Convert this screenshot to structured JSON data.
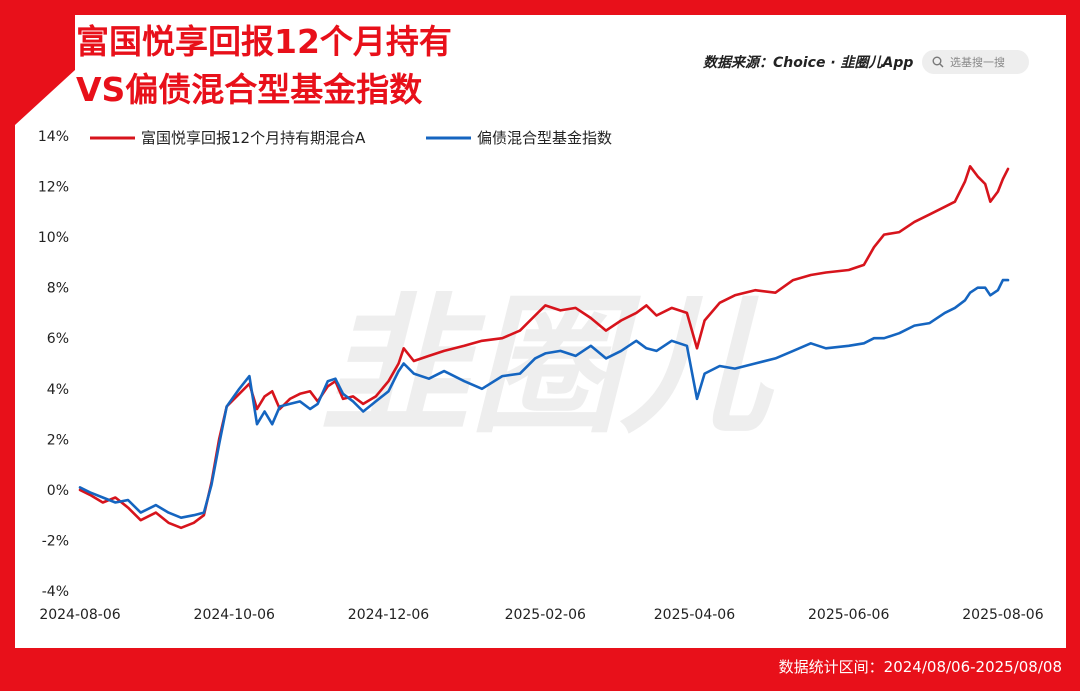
{
  "header": {
    "title_line1": "富国悦享回报12个月持有",
    "title_line2": "VS偏债混合型基金指数",
    "source": "数据来源：Choice · 韭圈儿App",
    "search_placeholder": "选基搜一搜",
    "watermark": "韭圈儿"
  },
  "footer": {
    "period": "数据统计区间：2024/08/06-2025/08/08"
  },
  "colors": {
    "brand_red": "#e8101a",
    "series_red": "#d7141c",
    "series_blue": "#1565c0"
  },
  "chart_data": {
    "type": "line",
    "title": "富国悦享回报12个月持有VS偏债混合型基金指数",
    "xlabel": "",
    "ylabel": "",
    "x_ticks": [
      "2024-08-06",
      "2024-10-06",
      "2024-12-06",
      "2025-02-06",
      "2025-04-06",
      "2025-06-06",
      "2025-08-06"
    ],
    "y_ticks": [
      "14%",
      "12%",
      "10%",
      "8%",
      "6%",
      "4%",
      "2%",
      "0%",
      "-2%",
      "-4%"
    ],
    "ylim": [
      -4,
      14
    ],
    "xlim": [
      "2024-08-06",
      "2025-08-08"
    ],
    "y_unit": "%",
    "legend_position": "top-left",
    "grid": false,
    "series": [
      {
        "name": "富国悦享回报12个月持有期混合A",
        "color": "#d7141c",
        "points": [
          [
            "2024-08-06",
            0.0
          ],
          [
            "2024-08-10",
            -0.2
          ],
          [
            "2024-08-15",
            -0.5
          ],
          [
            "2024-08-20",
            -0.3
          ],
          [
            "2024-08-25",
            -0.7
          ],
          [
            "2024-08-30",
            -1.2
          ],
          [
            "2024-09-05",
            -0.9
          ],
          [
            "2024-09-10",
            -1.3
          ],
          [
            "2024-09-15",
            -1.5
          ],
          [
            "2024-09-20",
            -1.3
          ],
          [
            "2024-09-24",
            -1.0
          ],
          [
            "2024-09-27",
            0.3
          ],
          [
            "2024-09-30",
            2.0
          ],
          [
            "2024-10-03",
            3.3
          ],
          [
            "2024-10-08",
            3.8
          ],
          [
            "2024-10-12",
            4.2
          ],
          [
            "2024-10-15",
            3.2
          ],
          [
            "2024-10-18",
            3.7
          ],
          [
            "2024-10-21",
            3.9
          ],
          [
            "2024-10-24",
            3.2
          ],
          [
            "2024-10-28",
            3.6
          ],
          [
            "2024-11-01",
            3.8
          ],
          [
            "2024-11-05",
            3.9
          ],
          [
            "2024-11-08",
            3.5
          ],
          [
            "2024-11-12",
            4.1
          ],
          [
            "2024-11-15",
            4.3
          ],
          [
            "2024-11-18",
            3.6
          ],
          [
            "2024-11-22",
            3.7
          ],
          [
            "2024-11-26",
            3.4
          ],
          [
            "2024-12-01",
            3.7
          ],
          [
            "2024-12-06",
            4.3
          ],
          [
            "2024-12-10",
            5.0
          ],
          [
            "2024-12-12",
            5.6
          ],
          [
            "2024-12-16",
            5.1
          ],
          [
            "2024-12-22",
            5.3
          ],
          [
            "2024-12-28",
            5.5
          ],
          [
            "2025-01-05",
            5.7
          ],
          [
            "2025-01-12",
            5.9
          ],
          [
            "2025-01-20",
            6.0
          ],
          [
            "2025-01-27",
            6.3
          ],
          [
            "2025-02-02",
            6.9
          ],
          [
            "2025-02-06",
            7.3
          ],
          [
            "2025-02-12",
            7.1
          ],
          [
            "2025-02-18",
            7.2
          ],
          [
            "2025-02-24",
            6.8
          ],
          [
            "2025-03-02",
            6.3
          ],
          [
            "2025-03-08",
            6.7
          ],
          [
            "2025-03-14",
            7.0
          ],
          [
            "2025-03-18",
            7.3
          ],
          [
            "2025-03-22",
            6.9
          ],
          [
            "2025-03-28",
            7.2
          ],
          [
            "2025-04-03",
            7.0
          ],
          [
            "2025-04-07",
            5.6
          ],
          [
            "2025-04-10",
            6.7
          ],
          [
            "2025-04-16",
            7.4
          ],
          [
            "2025-04-22",
            7.7
          ],
          [
            "2025-04-30",
            7.9
          ],
          [
            "2025-05-08",
            7.8
          ],
          [
            "2025-05-15",
            8.3
          ],
          [
            "2025-05-22",
            8.5
          ],
          [
            "2025-05-28",
            8.6
          ],
          [
            "2025-06-06",
            8.7
          ],
          [
            "2025-06-12",
            8.9
          ],
          [
            "2025-06-16",
            9.6
          ],
          [
            "2025-06-20",
            10.1
          ],
          [
            "2025-06-26",
            10.2
          ],
          [
            "2025-07-02",
            10.6
          ],
          [
            "2025-07-08",
            10.9
          ],
          [
            "2025-07-14",
            11.2
          ],
          [
            "2025-07-18",
            11.4
          ],
          [
            "2025-07-22",
            12.2
          ],
          [
            "2025-07-24",
            12.8
          ],
          [
            "2025-07-27",
            12.4
          ],
          [
            "2025-07-30",
            12.1
          ],
          [
            "2025-08-01",
            11.4
          ],
          [
            "2025-08-04",
            11.8
          ],
          [
            "2025-08-06",
            12.3
          ],
          [
            "2025-08-08",
            12.7
          ]
        ]
      },
      {
        "name": "偏债混合型基金指数",
        "color": "#1565c0",
        "points": [
          [
            "2024-08-06",
            0.1
          ],
          [
            "2024-08-10",
            -0.1
          ],
          [
            "2024-08-15",
            -0.3
          ],
          [
            "2024-08-20",
            -0.5
          ],
          [
            "2024-08-25",
            -0.4
          ],
          [
            "2024-08-30",
            -0.9
          ],
          [
            "2024-09-05",
            -0.6
          ],
          [
            "2024-09-10",
            -0.9
          ],
          [
            "2024-09-15",
            -1.1
          ],
          [
            "2024-09-20",
            -1.0
          ],
          [
            "2024-09-24",
            -0.9
          ],
          [
            "2024-09-27",
            0.2
          ],
          [
            "2024-09-30",
            1.8
          ],
          [
            "2024-10-03",
            3.3
          ],
          [
            "2024-10-08",
            4.0
          ],
          [
            "2024-10-12",
            4.5
          ],
          [
            "2024-10-15",
            2.6
          ],
          [
            "2024-10-18",
            3.1
          ],
          [
            "2024-10-21",
            2.6
          ],
          [
            "2024-10-24",
            3.3
          ],
          [
            "2024-10-28",
            3.4
          ],
          [
            "2024-11-01",
            3.5
          ],
          [
            "2024-11-05",
            3.2
          ],
          [
            "2024-11-08",
            3.4
          ],
          [
            "2024-11-12",
            4.3
          ],
          [
            "2024-11-15",
            4.4
          ],
          [
            "2024-11-18",
            3.8
          ],
          [
            "2024-11-22",
            3.5
          ],
          [
            "2024-11-26",
            3.1
          ],
          [
            "2024-12-01",
            3.5
          ],
          [
            "2024-12-06",
            3.9
          ],
          [
            "2024-12-10",
            4.7
          ],
          [
            "2024-12-12",
            5.0
          ],
          [
            "2024-12-16",
            4.6
          ],
          [
            "2024-12-22",
            4.4
          ],
          [
            "2024-12-28",
            4.7
          ],
          [
            "2025-01-05",
            4.3
          ],
          [
            "2025-01-12",
            4.0
          ],
          [
            "2025-01-20",
            4.5
          ],
          [
            "2025-01-27",
            4.6
          ],
          [
            "2025-02-02",
            5.2
          ],
          [
            "2025-02-06",
            5.4
          ],
          [
            "2025-02-12",
            5.5
          ],
          [
            "2025-02-18",
            5.3
          ],
          [
            "2025-02-24",
            5.7
          ],
          [
            "2025-03-02",
            5.2
          ],
          [
            "2025-03-08",
            5.5
          ],
          [
            "2025-03-14",
            5.9
          ],
          [
            "2025-03-18",
            5.6
          ],
          [
            "2025-03-22",
            5.5
          ],
          [
            "2025-03-28",
            5.9
          ],
          [
            "2025-04-03",
            5.7
          ],
          [
            "2025-04-07",
            3.6
          ],
          [
            "2025-04-10",
            4.6
          ],
          [
            "2025-04-16",
            4.9
          ],
          [
            "2025-04-22",
            4.8
          ],
          [
            "2025-04-30",
            5.0
          ],
          [
            "2025-05-08",
            5.2
          ],
          [
            "2025-05-15",
            5.5
          ],
          [
            "2025-05-22",
            5.8
          ],
          [
            "2025-05-28",
            5.6
          ],
          [
            "2025-06-06",
            5.7
          ],
          [
            "2025-06-12",
            5.8
          ],
          [
            "2025-06-16",
            6.0
          ],
          [
            "2025-06-20",
            6.0
          ],
          [
            "2025-06-26",
            6.2
          ],
          [
            "2025-07-02",
            6.5
          ],
          [
            "2025-07-08",
            6.6
          ],
          [
            "2025-07-14",
            7.0
          ],
          [
            "2025-07-18",
            7.2
          ],
          [
            "2025-07-22",
            7.5
          ],
          [
            "2025-07-24",
            7.8
          ],
          [
            "2025-07-27",
            8.0
          ],
          [
            "2025-07-30",
            8.0
          ],
          [
            "2025-08-01",
            7.7
          ],
          [
            "2025-08-04",
            7.9
          ],
          [
            "2025-08-06",
            8.3
          ],
          [
            "2025-08-08",
            8.3
          ]
        ]
      }
    ]
  }
}
